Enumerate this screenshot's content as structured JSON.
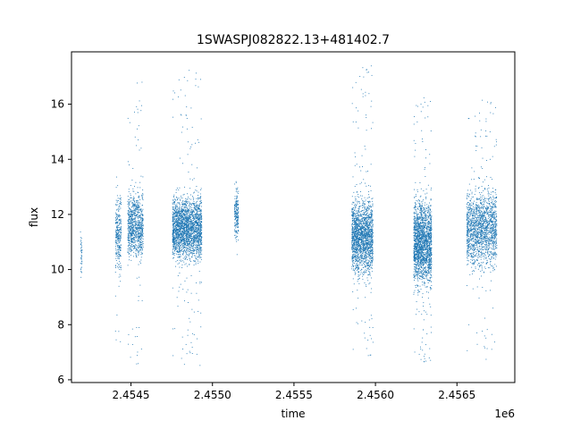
{
  "chart_data": {
    "type": "scatter",
    "title": "1SWASPJ082822.13+481402.7",
    "xlabel": "time",
    "ylabel": "flux",
    "x_offset_label": "1e6",
    "xlim": [
      2454135,
      2456855
    ],
    "ylim": [
      5.9,
      17.9
    ],
    "x_ticks": [
      2454500,
      2455000,
      2455500,
      2456000,
      2456500
    ],
    "x_tick_labels": [
      "2.4545",
      "2.4550",
      "2.4555",
      "2.4560",
      "2.4565"
    ],
    "y_ticks": [
      6,
      8,
      10,
      12,
      14,
      16
    ],
    "y_tick_labels": [
      "6",
      "8",
      "10",
      "12",
      "14",
      "16"
    ],
    "grid": false,
    "point_color": "#1f77b4",
    "seasons": [
      {
        "start": 2454190,
        "end": 2454200,
        "center": 10.5,
        "halfwidth": 1.0,
        "outlier_low": 8.5,
        "outlier_high": 11.5,
        "density": 40
      },
      {
        "start": 2454405,
        "end": 2454440,
        "center": 11.3,
        "halfwidth": 1.6,
        "outlier_low": 7.0,
        "outlier_high": 13.5,
        "density": 300
      },
      {
        "start": 2454480,
        "end": 2454575,
        "center": 11.6,
        "halfwidth": 1.5,
        "outlier_low": 6.5,
        "outlier_high": 17.0,
        "density": 900
      },
      {
        "start": 2454755,
        "end": 2454935,
        "center": 11.5,
        "halfwidth": 1.4,
        "outlier_low": 6.4,
        "outlier_high": 17.3,
        "density": 2400
      },
      {
        "start": 2455135,
        "end": 2455160,
        "center": 12.0,
        "halfwidth": 1.1,
        "outlier_low": 10.5,
        "outlier_high": 13.3,
        "density": 200
      },
      {
        "start": 2455855,
        "end": 2455985,
        "center": 11.2,
        "halfwidth": 1.7,
        "outlier_low": 6.8,
        "outlier_high": 17.4,
        "density": 1900
      },
      {
        "start": 2456235,
        "end": 2456345,
        "center": 11.0,
        "halfwidth": 1.9,
        "outlier_low": 6.6,
        "outlier_high": 16.3,
        "density": 2000
      },
      {
        "start": 2456560,
        "end": 2456745,
        "center": 11.5,
        "halfwidth": 1.7,
        "outlier_low": 6.6,
        "outlier_high": 16.2,
        "density": 1700
      }
    ]
  }
}
